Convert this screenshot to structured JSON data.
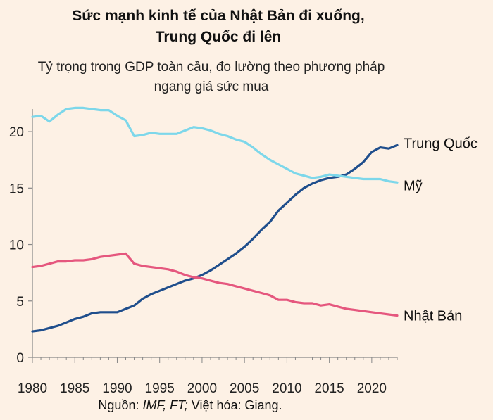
{
  "title_line1": "Sức mạnh kinh tế của Nhật Bản đi xuống,",
  "title_line2": "Trung Quốc đi lên",
  "subtitle_line1": "Tỷ trọng trong GDP toàn cầu, đo lường theo phương pháp",
  "subtitle_line2": "ngang giá sức mua",
  "source_prefix": "Nguồn: ",
  "source_italic": "IMF, FT;",
  "source_suffix": " Việt hóa: Giang.",
  "chart_data": {
    "type": "line",
    "title": "Sức mạnh kinh tế của Nhật Bản đi xuống, Trung Quốc đi lên",
    "subtitle": "Tỷ trọng trong GDP toàn cầu, đo lường theo phương pháp ngang giá sức mua",
    "xlim": [
      1980,
      2023
    ],
    "ylim": [
      0,
      22
    ],
    "xticks": [
      1980,
      1985,
      1990,
      1995,
      2000,
      2005,
      2010,
      2015,
      2020
    ],
    "yticks": [
      0,
      5,
      10,
      15,
      20
    ],
    "grid": false,
    "x": [
      1980,
      1981,
      1982,
      1983,
      1984,
      1985,
      1986,
      1987,
      1988,
      1989,
      1990,
      1991,
      1992,
      1993,
      1994,
      1995,
      1996,
      1997,
      1998,
      1999,
      2000,
      2001,
      2002,
      2003,
      2004,
      2005,
      2006,
      2007,
      2008,
      2009,
      2010,
      2011,
      2012,
      2013,
      2014,
      2015,
      2016,
      2017,
      2018,
      2019,
      2020,
      2021,
      2022,
      2023
    ],
    "series": [
      {
        "name": "Trung Quốc",
        "color": "#1f4e8c",
        "values": [
          2.3,
          2.4,
          2.6,
          2.8,
          3.1,
          3.4,
          3.6,
          3.9,
          4.0,
          4.0,
          4.0,
          4.3,
          4.6,
          5.2,
          5.6,
          5.9,
          6.2,
          6.5,
          6.8,
          7.0,
          7.3,
          7.7,
          8.2,
          8.7,
          9.2,
          9.8,
          10.5,
          11.3,
          12.0,
          13.0,
          13.7,
          14.4,
          15.0,
          15.4,
          15.7,
          15.9,
          16.0,
          16.2,
          16.7,
          17.3,
          18.2,
          18.6,
          18.5,
          18.8
        ]
      },
      {
        "name": "Mỹ",
        "color": "#7dd7ea",
        "values": [
          21.3,
          21.4,
          20.9,
          21.5,
          22.0,
          22.1,
          22.1,
          22.0,
          21.9,
          21.9,
          21.4,
          21.0,
          19.6,
          19.7,
          19.9,
          19.8,
          19.8,
          19.8,
          20.1,
          20.4,
          20.3,
          20.1,
          19.8,
          19.6,
          19.3,
          19.1,
          18.6,
          18.0,
          17.5,
          17.1,
          16.7,
          16.3,
          16.1,
          15.9,
          16.0,
          16.2,
          16.1,
          16.0,
          15.9,
          15.8,
          15.8,
          15.8,
          15.6,
          15.5
        ]
      },
      {
        "name": "Nhật Bản",
        "color": "#e5577e",
        "values": [
          8.0,
          8.1,
          8.3,
          8.5,
          8.5,
          8.6,
          8.6,
          8.7,
          8.9,
          9.0,
          9.1,
          9.2,
          8.3,
          8.1,
          8.0,
          7.9,
          7.8,
          7.6,
          7.3,
          7.1,
          7.0,
          6.8,
          6.6,
          6.5,
          6.3,
          6.1,
          5.9,
          5.7,
          5.5,
          5.1,
          5.1,
          4.9,
          4.8,
          4.8,
          4.6,
          4.7,
          4.5,
          4.3,
          4.2,
          4.1,
          4.0,
          3.9,
          3.8,
          3.7
        ]
      }
    ]
  }
}
